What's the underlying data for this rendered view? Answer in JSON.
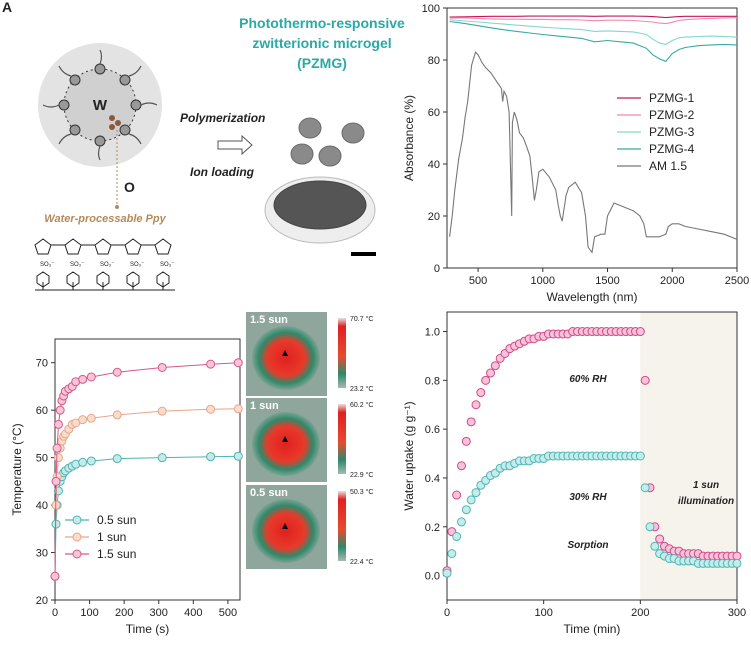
{
  "panel_label": "A",
  "schematic": {
    "title": [
      "Photothermo-responsive",
      "zwitterionic microgel",
      "(PZMG)"
    ],
    "polymerization": "Polymerization",
    "ion_loading": "Ion loading",
    "w": "W",
    "o": "O",
    "ppy_label": "Water-processable Ppy",
    "sulfonate": "SO₃⁻"
  },
  "thermal_images": [
    {
      "label": "1.5 sun",
      "max": "70.7 °C",
      "min": "23.2 °C"
    },
    {
      "label": "1 sun",
      "max": "60.2 °C",
      "min": "22.9 °C"
    },
    {
      "label": "0.5 sun",
      "max": "50.3 °C",
      "min": "22.4 °C"
    }
  ],
  "chart_data": [
    {
      "type": "line",
      "x_label": "Wavelength (nm)",
      "y_label": "Absorbance (%)",
      "xlim": [
        260,
        2500
      ],
      "ylim": [
        0,
        100
      ],
      "xticks": [
        500,
        1000,
        1500,
        2000,
        2500
      ],
      "yticks": [
        0,
        20,
        40,
        60,
        80,
        100
      ],
      "legend": "center right",
      "series": [
        {
          "name": "PZMG-1",
          "color": "#c2185b",
          "x": [
            280,
            400,
            500,
            600,
            700,
            800,
            900,
            1000,
            1100,
            1200,
            1300,
            1400,
            1500,
            1600,
            1700,
            1800,
            1850,
            1900,
            1950,
            2000,
            2050,
            2100,
            2200,
            2300,
            2400,
            2500
          ],
          "values": [
            96.5,
            96.6,
            96.7,
            96.8,
            96.8,
            96.8,
            96.9,
            96.9,
            96.9,
            96.9,
            96.9,
            96.8,
            96.9,
            96.9,
            96.9,
            96.8,
            96.7,
            96.5,
            96.3,
            96.5,
            96.7,
            96.8,
            96.8,
            96.8,
            96.8,
            96.8
          ]
        },
        {
          "name": "PZMG-2",
          "color": "#f08aa8",
          "x": [
            280,
            400,
            500,
            600,
            700,
            800,
            900,
            1000,
            1100,
            1200,
            1300,
            1400,
            1500,
            1600,
            1700,
            1800,
            1850,
            1900,
            1950,
            2000,
            2050,
            2100,
            2200,
            2300,
            2400,
            2500
          ],
          "values": [
            96.2,
            96.2,
            96.0,
            95.8,
            95.7,
            95.7,
            95.6,
            95.6,
            95.5,
            95.5,
            95.4,
            95.1,
            95.3,
            95.3,
            95.2,
            94.8,
            94.6,
            94.2,
            94.0,
            94.5,
            95.2,
            95.5,
            95.8,
            96.0,
            96.2,
            96.3
          ]
        },
        {
          "name": "PZMG-3",
          "color": "#85d6d1",
          "x": [
            280,
            400,
            500,
            600,
            700,
            800,
            900,
            1000,
            1100,
            1200,
            1300,
            1400,
            1500,
            1600,
            1700,
            1800,
            1850,
            1900,
            1950,
            2000,
            2050,
            2100,
            2200,
            2300,
            2400,
            2500
          ],
          "values": [
            95.5,
            95.0,
            94.6,
            94.2,
            93.8,
            93.4,
            93.0,
            92.6,
            92.3,
            92.0,
            91.7,
            91.0,
            91.2,
            91.0,
            90.8,
            89.8,
            88.0,
            86.5,
            86.0,
            87.5,
            88.5,
            88.8,
            89.0,
            89.2,
            89.0,
            88.8
          ]
        },
        {
          "name": "PZMG-4",
          "color": "#3aa8a8",
          "x": [
            280,
            400,
            500,
            600,
            700,
            800,
            900,
            1000,
            1100,
            1200,
            1300,
            1400,
            1500,
            1600,
            1700,
            1800,
            1850,
            1900,
            1950,
            2000,
            2050,
            2100,
            2200,
            2300,
            2400,
            2500
          ],
          "values": [
            94.8,
            94.0,
            93.2,
            92.4,
            91.6,
            91.0,
            90.4,
            89.8,
            89.3,
            88.8,
            88.3,
            87.0,
            87.5,
            87.0,
            86.5,
            84.5,
            82.0,
            80.5,
            79.5,
            82.5,
            84.0,
            84.8,
            85.5,
            85.8,
            86.0,
            85.8
          ]
        },
        {
          "name": "AM 1.5",
          "color": "#777777",
          "x": [
            280,
            300,
            320,
            350,
            380,
            400,
            420,
            450,
            480,
            500,
            530,
            560,
            600,
            640,
            680,
            690,
            700,
            720,
            740,
            760,
            765,
            780,
            800,
            820,
            850,
            880,
            900,
            920,
            935,
            950,
            970,
            1000,
            1050,
            1100,
            1120,
            1135,
            1150,
            1180,
            1200,
            1250,
            1300,
            1330,
            1350,
            1380,
            1400,
            1450,
            1480,
            1500,
            1550,
            1600,
            1650,
            1700,
            1750,
            1780,
            1800,
            1820,
            1850,
            1900,
            1950,
            1970,
            2000,
            2050,
            2100,
            2200,
            2300,
            2400,
            2500
          ],
          "values": [
            12,
            20,
            30,
            42,
            50,
            58,
            64,
            78,
            83,
            82,
            79,
            77,
            75,
            72,
            69,
            64,
            68,
            66,
            60,
            20,
            56,
            60,
            57,
            52,
            50,
            46,
            43,
            34,
            26,
            30,
            37,
            38,
            35,
            30,
            24,
            20,
            18,
            28,
            31,
            33,
            29,
            20,
            8,
            6,
            12,
            13,
            13,
            20,
            25,
            24,
            23,
            22,
            20,
            17,
            12,
            12,
            12,
            12,
            13,
            16,
            17,
            17,
            16,
            15,
            14,
            13,
            11
          ]
        }
      ]
    },
    {
      "type": "line",
      "markers": true,
      "x_label": "Time (s)",
      "y_label": "Temperature (°C)",
      "xlim": [
        0,
        535
      ],
      "ylim": [
        20,
        75
      ],
      "xticks": [
        0,
        100,
        200,
        300,
        400,
        500
      ],
      "yticks": [
        20,
        30,
        40,
        50,
        60,
        70
      ],
      "legend": "lower left",
      "x": [
        0,
        3,
        6,
        10,
        15,
        20,
        25,
        30,
        40,
        50,
        60,
        80,
        105,
        180,
        310,
        450,
        530
      ],
      "series": [
        {
          "name": "0.5 sun",
          "color": "#4fb3b2",
          "fill_color": "#c4ebe9",
          "values": [
            25,
            36,
            40,
            43,
            45,
            46,
            46.8,
            47.2,
            47.8,
            48.2,
            48.6,
            49,
            49.3,
            49.8,
            50,
            50.2,
            50.3
          ]
        },
        {
          "name": "1 sun",
          "color": "#e8a58a",
          "fill_color": "#f9dccb",
          "values": [
            25,
            40,
            46,
            50,
            52,
            53.5,
            54.5,
            55,
            56,
            57,
            57.3,
            58,
            58.3,
            59,
            59.8,
            60.2,
            60.3
          ]
        },
        {
          "name": "1.5 sun",
          "color": "#d6588a",
          "fill_color": "#f6c6d8",
          "values": [
            25,
            45,
            52,
            57,
            60,
            62,
            63,
            64,
            64.5,
            65,
            66,
            66.5,
            67,
            68,
            69,
            69.7,
            70
          ]
        }
      ]
    },
    {
      "type": "scatter",
      "x_label": "Time (min)",
      "y_label": "Water uptake (g g⁻¹)",
      "xlim": [
        0,
        300
      ],
      "ylim": [
        -0.1,
        1.08
      ],
      "xticks": [
        0,
        100,
        200,
        300
      ],
      "yticks": [
        {
          "value": 0,
          "label": "0.0"
        },
        0.2,
        0.4,
        0.6,
        0.8,
        {
          "value": 1,
          "label": "1.0"
        }
      ],
      "shaded_x": [
        200,
        300
      ],
      "annotations": [
        "60% RH",
        "30% RH",
        "Sorption",
        "1 sun",
        "illumination"
      ],
      "x": [
        0,
        5,
        10,
        15,
        20,
        25,
        30,
        35,
        40,
        45,
        50,
        55,
        60,
        65,
        70,
        75,
        80,
        85,
        90,
        95,
        100,
        105,
        110,
        115,
        120,
        125,
        130,
        135,
        140,
        145,
        150,
        155,
        160,
        165,
        170,
        175,
        180,
        185,
        190,
        195,
        200,
        205,
        210,
        215,
        220,
        225,
        230,
        235,
        240,
        245,
        250,
        255,
        260,
        265,
        270,
        275,
        280,
        285,
        290,
        295,
        300
      ],
      "series": [
        {
          "name": "60% RH",
          "color": "#d04a87",
          "fill_color": "#f6c3da",
          "values": [
            0.02,
            0.18,
            0.33,
            0.45,
            0.55,
            0.63,
            0.7,
            0.75,
            0.8,
            0.83,
            0.86,
            0.89,
            0.91,
            0.93,
            0.94,
            0.95,
            0.96,
            0.97,
            0.97,
            0.98,
            0.98,
            0.99,
            0.99,
            0.99,
            0.99,
            0.99,
            1.0,
            1.0,
            1.0,
            1.0,
            1.0,
            1.0,
            1.0,
            1.0,
            1.0,
            1.0,
            1.0,
            1.0,
            1.0,
            1.0,
            1.0,
            0.8,
            0.36,
            0.2,
            0.15,
            0.12,
            0.11,
            0.1,
            0.1,
            0.09,
            0.09,
            0.09,
            0.09,
            0.08,
            0.08,
            0.08,
            0.08,
            0.08,
            0.08,
            0.08,
            0.08
          ]
        },
        {
          "name": "30% RH",
          "color": "#4fb6b6",
          "fill_color": "#c4ecea",
          "values": [
            0.01,
            0.09,
            0.16,
            0.22,
            0.27,
            0.31,
            0.34,
            0.37,
            0.39,
            0.41,
            0.42,
            0.44,
            0.45,
            0.45,
            0.46,
            0.47,
            0.47,
            0.47,
            0.48,
            0.48,
            0.48,
            0.49,
            0.49,
            0.49,
            0.49,
            0.49,
            0.49,
            0.49,
            0.49,
            0.49,
            0.49,
            0.49,
            0.49,
            0.49,
            0.49,
            0.49,
            0.49,
            0.49,
            0.49,
            0.49,
            0.49,
            0.36,
            0.2,
            0.12,
            0.09,
            0.08,
            0.07,
            0.07,
            0.06,
            0.06,
            0.06,
            0.06,
            0.05,
            0.05,
            0.05,
            0.05,
            0.05,
            0.05,
            0.05,
            0.05,
            0.05
          ]
        }
      ]
    }
  ]
}
